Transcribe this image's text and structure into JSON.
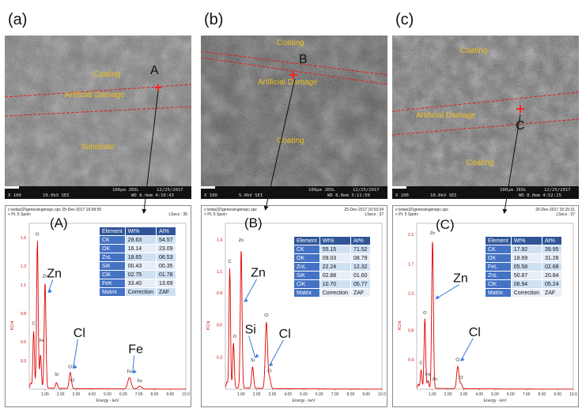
{
  "panels": [
    {
      "letter": "(a)",
      "point": "A",
      "sem_labels": [
        "Coating",
        "Artificial Damage",
        "Substrate"
      ],
      "databar": {
        "mag": "X 100",
        "kv": "10.0kV SEI",
        "scale": "100µm JEOL",
        "date": "12/25/2017",
        "wd": "WD 8.0mm 4:10:43"
      },
      "spectrum": {
        "header_left": [
          "c:\\edax32\\genesis\\genspc.spc 25-Dec-2017 16:09:55",
          "< Pt. 5 Spot>"
        ],
        "header_right": [
          "LSecs : 35"
        ],
        "big_letter": "(A)",
        "y_title": "KCnt",
        "y_ticks": [
          "1.6",
          "1.3",
          "1.1",
          "0.8",
          "0.5",
          "0.3"
        ],
        "x_ticks": [
          "1.00",
          "2.00",
          "3.00",
          "4.00",
          "5.00",
          "6.00",
          "7.00",
          "8.00",
          "9.00",
          "10.0"
        ],
        "x_title": "Energy - keV",
        "peak_labels": [
          "O",
          "C",
          "Zn",
          "Fe",
          "Si",
          "Cl",
          "Cl",
          "Fe",
          "Fe"
        ],
        "big_elements": [
          "Zn",
          "Cl",
          "Fe"
        ],
        "table": {
          "headers": [
            "Element",
            "Wt%",
            "At%"
          ],
          "rows": [
            [
              "CK",
              "28.63",
              "54.57"
            ],
            [
              "OK",
              "16.14",
              "23.09"
            ],
            [
              "ZnL",
              "18.65",
              "06.53"
            ],
            [
              "SiK",
              "00.43",
              "00.35"
            ],
            [
              "ClK",
              "02.75",
              "01.78"
            ],
            [
              "FeK",
              "33.40",
              "13.69"
            ],
            [
              "Matrix",
              "Correction",
              "ZAF"
            ]
          ]
        }
      }
    },
    {
      "letter": "(b)",
      "point": "B",
      "sem_labels": [
        "Coating",
        "Artificial Damage",
        "Coating"
      ],
      "databar": {
        "mag": "X 100",
        "kv": "5.0kV SEI",
        "scale": "100µm JEOL",
        "date": "12/25/2017",
        "wd": "WD 8.0mm 3:11:50"
      },
      "spectrum": {
        "header_left": [
          "c:\\edax32\\genesis\\genspc.spc",
          "< Pt. 5 Spot>"
        ],
        "header_right": [
          "25-Dec-2017 10:53:34",
          "LSecs : 37"
        ],
        "big_letter": "(B)",
        "y_title": "KCnt",
        "y_ticks": [
          "1.4",
          "1.1",
          "0.9",
          "0.6",
          "0.3"
        ],
        "x_ticks": [
          "1.00",
          "2.00",
          "3.00",
          "4.00",
          "5.00",
          "6.00",
          "7.00",
          "8.00",
          "9.00",
          "10.0"
        ],
        "x_title": "Energy - keV",
        "peak_labels": [
          "C",
          "O",
          "Zn",
          "Si",
          "Cl",
          "Cl"
        ],
        "big_elements": [
          "Zn",
          "Si",
          "Cl"
        ],
        "table": {
          "headers": [
            "Element",
            "Wt%",
            "At%"
          ],
          "rows": [
            [
              "CK",
              "55.15",
              "71.52"
            ],
            [
              "OK",
              "09.03",
              "08.79"
            ],
            [
              "ZnL",
              "22.24",
              "12.32"
            ],
            [
              "SiK",
              "02.88",
              "01.60"
            ],
            [
              "ClK",
              "10.70",
              "05.77"
            ],
            [
              "Matrix",
              "Correction",
              "ZAF"
            ]
          ]
        }
      }
    },
    {
      "letter": "(c)",
      "point": "C",
      "sem_labels": [
        "Coating",
        "Artificial Damage",
        "Coating"
      ],
      "databar": {
        "mag": "X 100",
        "kv": "10.0kV SEI",
        "scale": "100µm JEOL",
        "date": "12/25/2017",
        "wd": "WD 8.0mm 4:52:15"
      },
      "spectrum": {
        "header_left": [
          "c:\\edax32\\genesis\\genspc.spc",
          "< Pt. 5 Spot>"
        ],
        "header_right": [
          "25-Dec-2017 15:15:31",
          "LSecs : 37"
        ],
        "big_letter": "(C)",
        "y_title": "KCnt",
        "y_ticks": [
          "2.1",
          "1.7",
          "1.3",
          "0.8",
          "0.4"
        ],
        "x_ticks": [
          "1.00",
          "2.00",
          "3.00",
          "4.00",
          "5.00",
          "6.00",
          "7.00",
          "8.00",
          "9.00",
          "10.0"
        ],
        "x_title": "Energy - keV",
        "peak_labels": [
          "Zn",
          "O",
          "C",
          "Fe",
          "Zn",
          "Cl",
          "Cl"
        ],
        "big_elements": [
          "Zn",
          "Cl"
        ],
        "table": {
          "headers": [
            "Element",
            "Wt%",
            "At%"
          ],
          "rows": [
            [
              "CK",
              "17.92",
              "39.95"
            ],
            [
              "OK",
              "18.69",
              "31.28"
            ],
            [
              "FeL",
              "05.58",
              "02.68"
            ],
            [
              "ZnL",
              "50.87",
              "20.84"
            ],
            [
              "ClK",
              "06.94",
              "05.24"
            ],
            [
              "Matrix",
              "Correction",
              "ZAF"
            ]
          ]
        }
      }
    }
  ],
  "chart_data": [
    {
      "type": "line",
      "title": "",
      "xlabel": "Energy - keV",
      "ylabel": "KCnt",
      "xlim": [
        0,
        10
      ],
      "ylim": [
        0,
        1.75
      ],
      "series": [
        {
          "x": [
            0.1,
            0.28,
            0.52,
            0.72,
            1.01,
            1.74,
            2.62,
            6.4,
            7.06,
            10.0
          ],
          "values": [
            0.05,
            0.6,
            1.56,
            0.35,
            1.12,
            0.06,
            0.17,
            0.12,
            0.03,
            0.0
          ]
        }
      ]
    },
    {
      "type": "line",
      "title": "",
      "xlabel": "Energy - keV",
      "ylabel": "KCnt",
      "xlim": [
        0,
        10
      ],
      "ylim": [
        0,
        1.55
      ],
      "series": [
        {
          "x": [
            0.1,
            0.28,
            0.52,
            1.01,
            1.74,
            2.62,
            2.82,
            10.0
          ],
          "values": [
            0.05,
            1.12,
            0.42,
            1.3,
            0.2,
            0.62,
            0.1,
            0.0
          ]
        }
      ]
    },
    {
      "type": "line",
      "title": "",
      "xlabel": "Energy - keV",
      "ylabel": "KCnt",
      "xlim": [
        0,
        10
      ],
      "ylim": [
        0,
        2.25
      ],
      "series": [
        {
          "x": [
            0.1,
            0.28,
            0.52,
            0.72,
            1.01,
            2.62,
            2.82,
            10.0
          ],
          "values": [
            0.05,
            0.25,
            0.95,
            0.1,
            2.02,
            0.3,
            0.07,
            0.0
          ]
        }
      ]
    }
  ]
}
